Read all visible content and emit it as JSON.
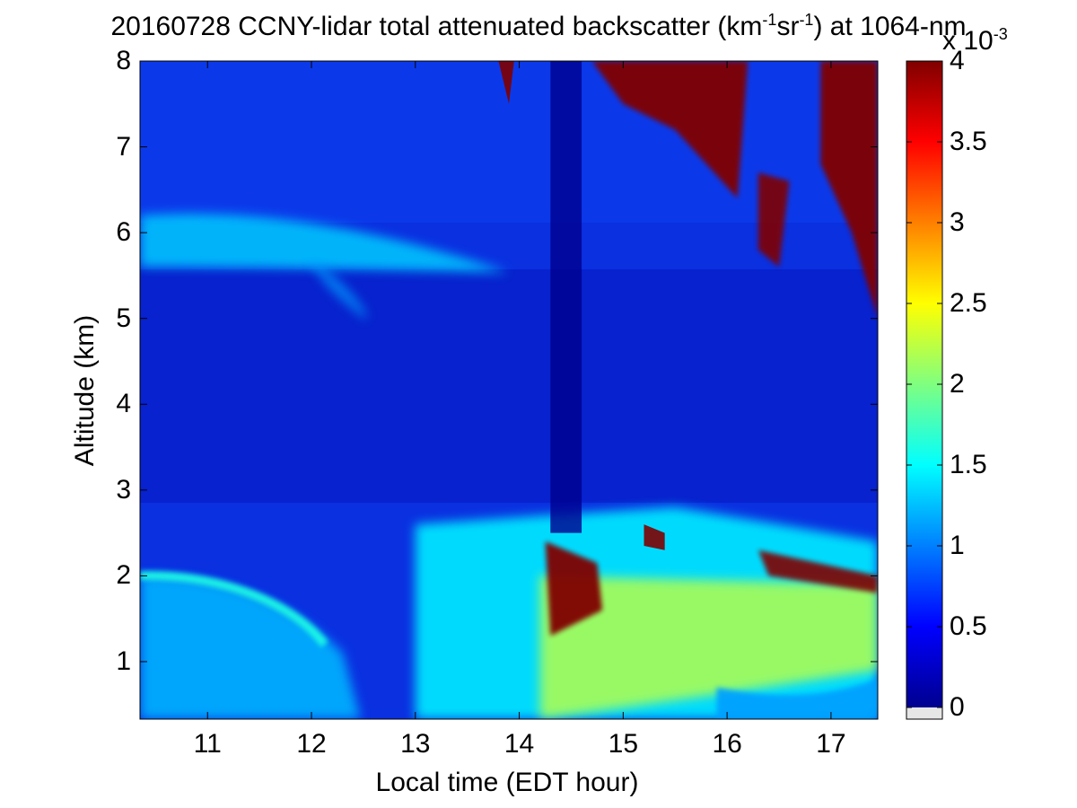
{
  "chart_data": {
    "type": "heatmap",
    "title_main": "20160728 CCNY-lidar total attenuated backscatter (km",
    "title_sup1": "-1",
    "title_mid": "sr",
    "title_sup2": "-1",
    "title_end": ") at 1064-nm",
    "xlabel": "Local time (EDT hour)",
    "ylabel": "Altitude (km)",
    "xlim": [
      10.35,
      17.45
    ],
    "ylim": [
      0.33,
      8
    ],
    "xticks": [
      "11",
      "12",
      "13",
      "14",
      "15",
      "16",
      "17"
    ],
    "yticks": [
      "1",
      "2",
      "3",
      "4",
      "5",
      "6",
      "7",
      "8"
    ],
    "colormap": "jet",
    "colorbar": {
      "range": [
        0,
        4
      ],
      "ticks": [
        "0",
        "0.5",
        "1",
        "1.5",
        "2",
        "2.5",
        "3",
        "3.5",
        "4"
      ],
      "exponent_base": "x 10",
      "exponent_power": "-3"
    },
    "features": [
      {
        "name": "elevated aerosol layer",
        "x": [
          10.35,
          13.9
        ],
        "y": [
          5.6,
          6.2
        ],
        "peak_value": 1.3
      },
      {
        "name": "morning residual layer",
        "x": [
          10.35,
          12.3
        ],
        "y": [
          1.4,
          2.0
        ],
        "peak_value": 1.6
      },
      {
        "name": "convective boundary layer",
        "x": [
          13.0,
          17.45
        ],
        "y": [
          0.33,
          2.8
        ],
        "peak_value": 2.2
      },
      {
        "name": "boundary layer top clouds",
        "x": [
          14.2,
          17.45
        ],
        "y": [
          1.7,
          2.5
        ],
        "peak_value": 4.0
      },
      {
        "name": "upper cloud layer",
        "x": [
          14.3,
          17.45
        ],
        "y": [
          5.0,
          8.0
        ],
        "peak_value": 4.0
      },
      {
        "name": "low signal gap",
        "x": [
          14.3,
          14.6
        ],
        "y": [
          2.5,
          8.0
        ],
        "peak_value": 0.0
      }
    ],
    "grid": false
  }
}
